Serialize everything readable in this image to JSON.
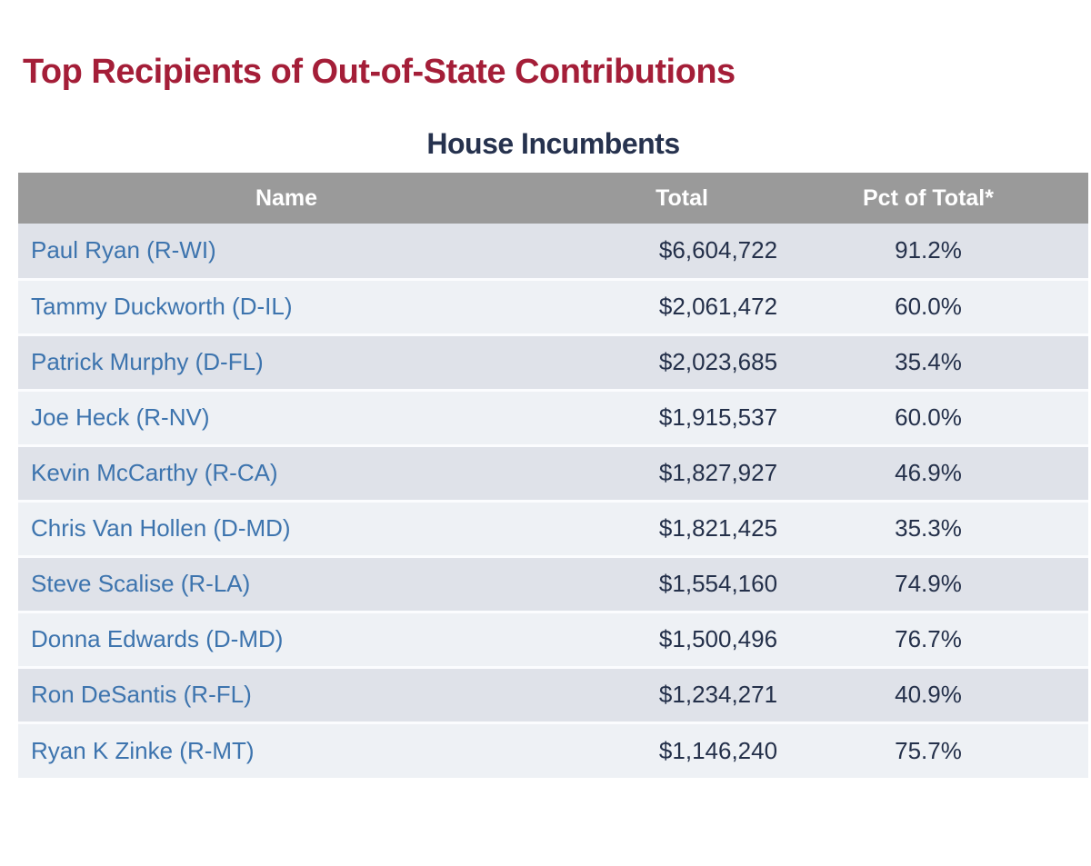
{
  "page": {
    "title": "Top Recipients of Out-of-State Contributions",
    "subtitle": "House Incumbents"
  },
  "table": {
    "headers": [
      "Name",
      "Total",
      "Pct of Total*"
    ],
    "rows": [
      {
        "name": "Paul Ryan (R-WI)",
        "total": "$6,604,722",
        "pct": "91.2%"
      },
      {
        "name": "Tammy Duckworth (D-IL)",
        "total": "$2,061,472",
        "pct": "60.0%"
      },
      {
        "name": "Patrick Murphy (D-FL)",
        "total": "$2,023,685",
        "pct": "35.4%"
      },
      {
        "name": "Joe Heck (R-NV)",
        "total": "$1,915,537",
        "pct": "60.0%"
      },
      {
        "name": "Kevin McCarthy (R-CA)",
        "total": "$1,827,927",
        "pct": "46.9%"
      },
      {
        "name": "Chris Van Hollen (D-MD)",
        "total": "$1,821,425",
        "pct": "35.3%"
      },
      {
        "name": "Steve Scalise (R-LA)",
        "total": "$1,554,160",
        "pct": "74.9%"
      },
      {
        "name": "Donna Edwards (D-MD)",
        "total": "$1,500,496",
        "pct": "76.7%"
      },
      {
        "name": "Ron DeSantis (R-FL)",
        "total": "$1,234,271",
        "pct": "40.9%"
      },
      {
        "name": "Ryan K Zinke (R-MT)",
        "total": "$1,146,240",
        "pct": "75.7%"
      }
    ]
  },
  "colors": {
    "title_crimson": "#a41e38",
    "subtitle_navy": "#26324e",
    "header_bg": "#9a9a9a",
    "header_text": "#ffffff",
    "row_odd_bg": "#dfe2e9",
    "row_even_bg": "#eef1f5",
    "name_link_blue": "#3d74ae",
    "value_navy": "#24304a"
  },
  "chart_data": {
    "type": "table",
    "title": "Top Recipients of Out-of-State Contributions",
    "subtitle": "House Incumbents",
    "columns": [
      "Name",
      "Total",
      "Pct of Total*"
    ],
    "rows": [
      [
        "Paul Ryan (R-WI)",
        6604722,
        91.2
      ],
      [
        "Tammy Duckworth (D-IL)",
        2061472,
        60.0
      ],
      [
        "Patrick Murphy (D-FL)",
        2023685,
        35.4
      ],
      [
        "Joe Heck (R-NV)",
        1915537,
        60.0
      ],
      [
        "Kevin McCarthy (R-CA)",
        1827927,
        46.9
      ],
      [
        "Chris Van Hollen (D-MD)",
        1821425,
        35.3
      ],
      [
        "Steve Scalise (R-LA)",
        1554160,
        74.9
      ],
      [
        "Donna Edwards (D-MD)",
        1500496,
        76.7
      ],
      [
        "Ron DeSantis (R-FL)",
        1234271,
        40.9
      ],
      [
        "Ryan K Zinke (R-MT)",
        1146240,
        75.7
      ]
    ]
  }
}
